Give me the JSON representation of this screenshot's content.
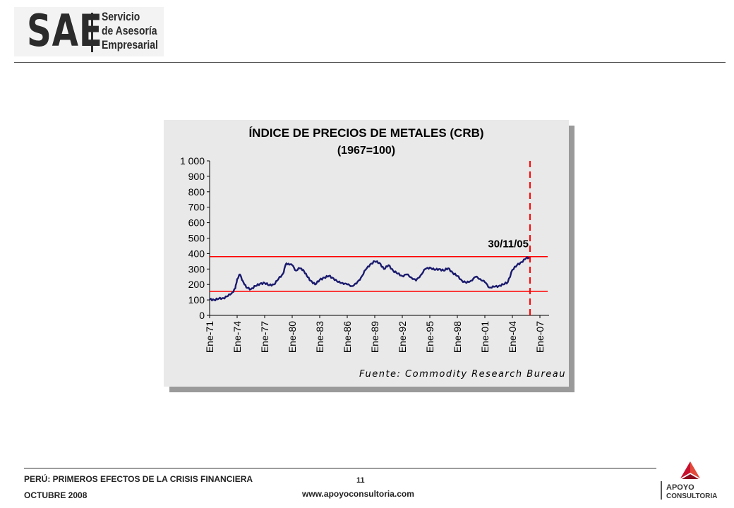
{
  "header": {
    "logo_mark": "SAE",
    "logo_lines": [
      "Servicio",
      "de Asesoría",
      "Empresarial"
    ]
  },
  "footer": {
    "title": "PERÚ: PRIMEROS EFECTOS DE LA CRISIS FINANCIERA",
    "date": "OCTUBRE 2008",
    "page_number": "11",
    "website": "www.apoyoconsultoria.com",
    "brand_top": "APOYO",
    "brand_bottom": "CONSULTORIA"
  },
  "colors": {
    "series": "#1a1a6e",
    "band": "#ff0000",
    "panel": "#e9e9e9"
  },
  "chart_data": {
    "type": "line",
    "title": "ÍNDICE DE PRECIOS DE METALES (CRB)",
    "subtitle": "(1967=100)",
    "ylim": [
      0,
      1000
    ],
    "yticks": [
      "0",
      "100",
      "200",
      "300",
      "400",
      "500",
      "600",
      "700",
      "800",
      "900",
      "1 000"
    ],
    "xlim": [
      1971,
      2008
    ],
    "xticks": [
      {
        "label": "Ene-71",
        "year": 1971
      },
      {
        "label": "Ene-74",
        "year": 1974
      },
      {
        "label": "Ene-77",
        "year": 1977
      },
      {
        "label": "Ene-80",
        "year": 1980
      },
      {
        "label": "Ene-83",
        "year": 1983
      },
      {
        "label": "Ene-86",
        "year": 1986
      },
      {
        "label": "Ene-89",
        "year": 1989
      },
      {
        "label": "Ene-92",
        "year": 1992
      },
      {
        "label": "Ene-95",
        "year": 1995
      },
      {
        "label": "Ene-98",
        "year": 1998
      },
      {
        "label": "Ene-01",
        "year": 2001
      },
      {
        "label": "Ene-04",
        "year": 2004
      },
      {
        "label": "Ene-07",
        "year": 2007
      }
    ],
    "series": [
      {
        "points": [
          [
            1971.0,
            105
          ],
          [
            1971.5,
            100
          ],
          [
            1972.0,
            108
          ],
          [
            1972.5,
            112
          ],
          [
            1973.0,
            125
          ],
          [
            1973.5,
            150
          ],
          [
            1973.8,
            175
          ],
          [
            1974.0,
            235
          ],
          [
            1974.3,
            265
          ],
          [
            1974.6,
            225
          ],
          [
            1975.0,
            180
          ],
          [
            1975.5,
            170
          ],
          [
            1976.0,
            190
          ],
          [
            1976.5,
            205
          ],
          [
            1977.0,
            210
          ],
          [
            1977.5,
            195
          ],
          [
            1978.0,
            200
          ],
          [
            1978.5,
            235
          ],
          [
            1979.0,
            270
          ],
          [
            1979.3,
            330
          ],
          [
            1979.6,
            335
          ],
          [
            1980.0,
            325
          ],
          [
            1980.4,
            290
          ],
          [
            1980.8,
            305
          ],
          [
            1981.2,
            295
          ],
          [
            1981.6,
            255
          ],
          [
            1982.0,
            225
          ],
          [
            1982.5,
            200
          ],
          [
            1983.0,
            230
          ],
          [
            1983.5,
            245
          ],
          [
            1984.0,
            255
          ],
          [
            1984.5,
            240
          ],
          [
            1985.0,
            215
          ],
          [
            1985.5,
            210
          ],
          [
            1986.0,
            200
          ],
          [
            1986.5,
            190
          ],
          [
            1987.0,
            205
          ],
          [
            1987.5,
            245
          ],
          [
            1988.0,
            295
          ],
          [
            1988.5,
            330
          ],
          [
            1989.0,
            350
          ],
          [
            1989.5,
            340
          ],
          [
            1990.0,
            300
          ],
          [
            1990.5,
            325
          ],
          [
            1991.0,
            290
          ],
          [
            1991.5,
            270
          ],
          [
            1992.0,
            255
          ],
          [
            1992.5,
            265
          ],
          [
            1993.0,
            245
          ],
          [
            1993.5,
            225
          ],
          [
            1994.0,
            260
          ],
          [
            1994.5,
            300
          ],
          [
            1995.0,
            310
          ],
          [
            1995.5,
            295
          ],
          [
            1996.0,
            300
          ],
          [
            1996.5,
            290
          ],
          [
            1997.0,
            305
          ],
          [
            1997.5,
            275
          ],
          [
            1998.0,
            255
          ],
          [
            1998.5,
            225
          ],
          [
            1999.0,
            210
          ],
          [
            1999.5,
            225
          ],
          [
            2000.0,
            250
          ],
          [
            2000.5,
            235
          ],
          [
            2001.0,
            215
          ],
          [
            2001.5,
            180
          ],
          [
            2002.0,
            185
          ],
          [
            2002.5,
            190
          ],
          [
            2003.0,
            200
          ],
          [
            2003.5,
            215
          ],
          [
            2004.0,
            295
          ],
          [
            2004.5,
            325
          ],
          [
            2005.0,
            345
          ],
          [
            2005.5,
            370
          ],
          [
            2005.9,
            375
          ]
        ]
      }
    ],
    "reference_lines": [
      {
        "orientation": "horizontal",
        "value": 380
      },
      {
        "orientation": "horizontal",
        "value": 155
      }
    ],
    "marker": {
      "label": "30/11/05",
      "year": 2005.92,
      "style": "dashed vertical"
    },
    "source": "Fuente: Commodity Research Bureau",
    "grid": false,
    "legend": "none"
  }
}
